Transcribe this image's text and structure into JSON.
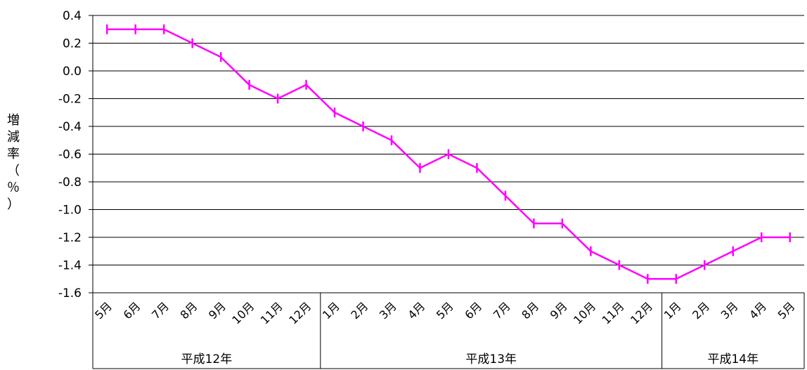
{
  "chart_data": {
    "type": "line",
    "ylabel": [
      "増",
      "減",
      "率",
      "（",
      "％",
      "）"
    ],
    "ylim": [
      -1.6,
      0.4
    ],
    "ytick_step": 0.2,
    "yticks": [
      "0.4",
      "0.2",
      "0.0",
      "-0.2",
      "-0.4",
      "-0.6",
      "-0.8",
      "-1.0",
      "-1.2",
      "-1.4",
      "-1.6"
    ],
    "grid": true,
    "categories": [
      "5月",
      "6月",
      "7月",
      "8月",
      "9月",
      "10月",
      "11月",
      "12月",
      "1月",
      "2月",
      "3月",
      "4月",
      "5月",
      "6月",
      "7月",
      "8月",
      "9月",
      "10月",
      "11月",
      "12月",
      "1月",
      "2月",
      "3月",
      "4月",
      "5月"
    ],
    "groups": [
      {
        "label": "平成12年",
        "count": 8
      },
      {
        "label": "平成13年",
        "count": 12
      },
      {
        "label": "平成14年",
        "count": 5
      }
    ],
    "series": [
      {
        "color": "#FF00FF",
        "values": [
          0.3,
          0.3,
          0.3,
          0.2,
          0.1,
          -0.1,
          -0.2,
          -0.1,
          -0.3,
          -0.4,
          -0.5,
          -0.7,
          -0.6,
          -0.7,
          -0.9,
          -1.1,
          -1.1,
          -1.3,
          -1.4,
          -1.5,
          -1.5,
          -1.4,
          -1.3,
          -1.2,
          -1.2
        ]
      }
    ]
  }
}
